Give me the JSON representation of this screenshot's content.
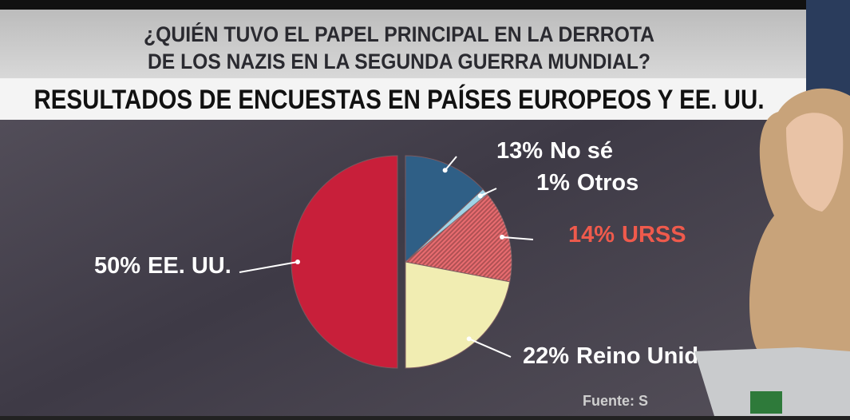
{
  "chart_data": {
    "type": "pie",
    "title": [
      "¿QUIÉN TUVO EL PAPEL PRINCIPAL EN LA DERROTA",
      "DE LOS NAZIS EN LA SEGUNDA GUERRA MUNDIAL?"
    ],
    "subtitle": "RESULTADOS DE ENCUESTAS EN PAÍSES EUROPEOS Y EE. UU.",
    "categories": [
      "No sé",
      "Otros",
      "URSS",
      "Reino Unido",
      "EE. UU."
    ],
    "values": [
      13,
      1,
      14,
      22,
      50
    ],
    "value_labels": [
      "13%",
      "1%",
      "14%",
      "22%",
      "50%"
    ],
    "colors": [
      "#2f5f86",
      "#9fd3e6",
      "#e23b40",
      "#f1edb2",
      "#c81f3a"
    ],
    "label_colors": [
      "#ffffff",
      "#ffffff",
      "#ef5a4c",
      "#ffffff",
      "#ffffff"
    ],
    "source": "Fuente: S"
  }
}
